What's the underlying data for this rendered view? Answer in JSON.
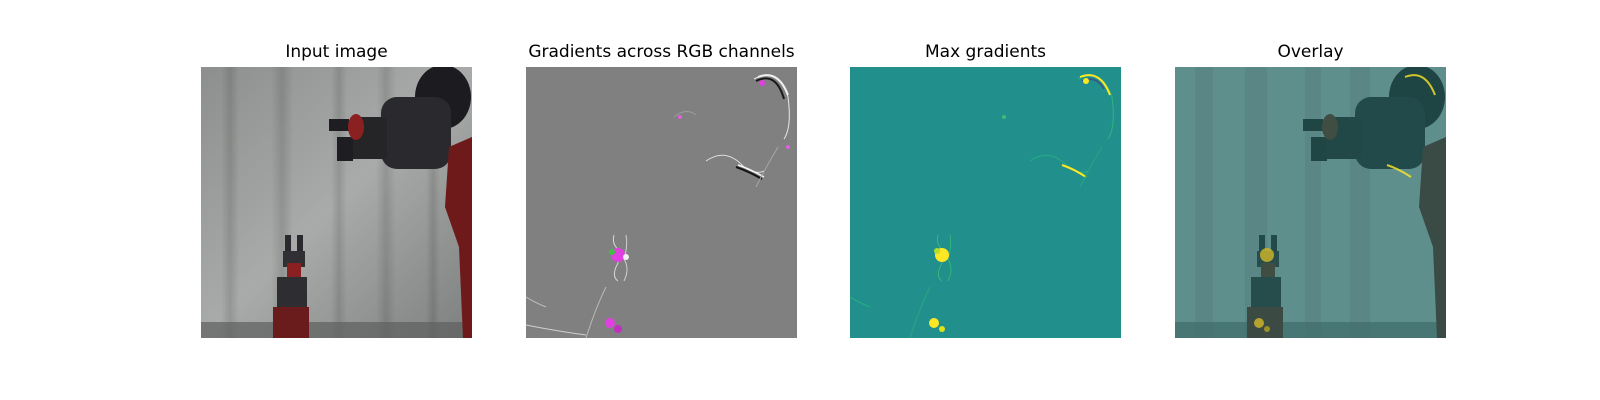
{
  "figure": {
    "panels": [
      {
        "title": "Input image"
      },
      {
        "title": "Gradients across RGB channels"
      },
      {
        "title": "Max gradients"
      },
      {
        "title": "Overlay"
      }
    ]
  },
  "colors": {
    "background_gray": "#808080",
    "viridis_base": "#21908c",
    "viridis_high": "#fde725",
    "gradient_magenta": "#e040e0",
    "robot_dark": "#2a2a2e",
    "robot_red": "#7a1c1c"
  }
}
